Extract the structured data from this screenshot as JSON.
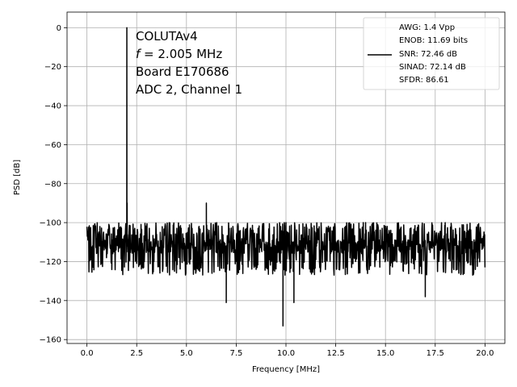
{
  "chart_data": {
    "type": "line",
    "xlabel": "Frequency [MHz]",
    "ylabel": "PSD [dB]",
    "xlim": [
      -1.0,
      21.0
    ],
    "ylim": [
      -162,
      8
    ],
    "xticks": [
      0.0,
      2.5,
      5.0,
      7.5,
      10.0,
      12.5,
      15.0,
      17.5,
      20.0
    ],
    "xtick_labels": [
      "0.0",
      "2.5",
      "5.0",
      "7.5",
      "10.0",
      "12.5",
      "15.0",
      "17.5",
      "20.0"
    ],
    "yticks": [
      0,
      -20,
      -40,
      -60,
      -80,
      -100,
      -120,
      -140,
      -160
    ],
    "ytick_labels": [
      "0",
      "−20",
      "−40",
      "−60",
      "−80",
      "−100",
      "−120",
      "−140",
      "−160"
    ],
    "grid": true,
    "line_color": "#000000",
    "annotation": {
      "title_line": "COLUTAv4",
      "freq_symbol": "f",
      "freq_value": " = 2.005 MHz",
      "board_line": "Board E170686",
      "adc_line": "ADC 2, Channel 1"
    },
    "legend": {
      "placement": "top-right",
      "lines": [
        "AWG: 1.4 Vpp",
        "ENOB: 11.69 bits",
        "SNR: 72.46 dB",
        "SINAD: 72.14 dB",
        "SFDR: 86.61"
      ]
    },
    "series": [
      {
        "noise_floor_db": -112,
        "noise_top_db": -101,
        "noise_bottom_db": -125,
        "x_start": 0.0,
        "x_end": 20.0,
        "peaks": [
          {
            "x": 2.005,
            "y": 0
          },
          {
            "x": 2.02,
            "y": -90
          },
          {
            "x": 6.0,
            "y": -90
          },
          {
            "x": 10.0,
            "y": -100
          },
          {
            "x": 14.0,
            "y": -100
          },
          {
            "x": 18.0,
            "y": -100
          }
        ],
        "dips": [
          {
            "x": 7.0,
            "y": -141
          },
          {
            "x": 9.85,
            "y": -153
          },
          {
            "x": 10.4,
            "y": -141
          },
          {
            "x": 17.0,
            "y": -138
          }
        ]
      }
    ]
  }
}
